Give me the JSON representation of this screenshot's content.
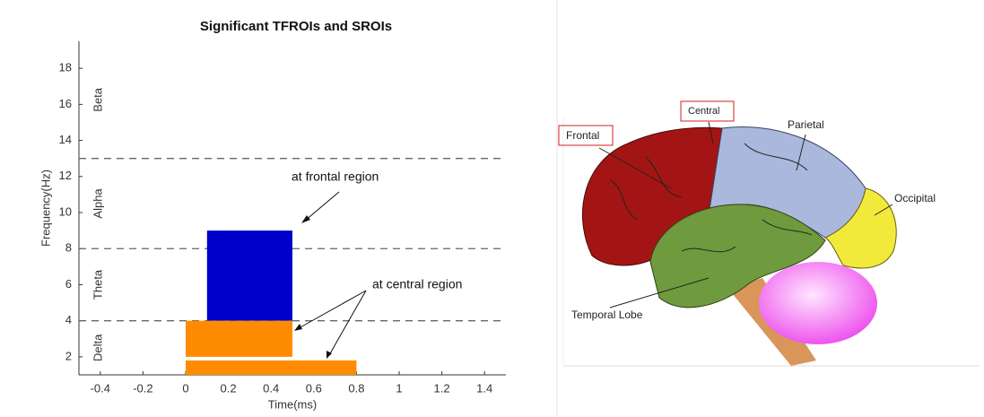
{
  "chart_data": {
    "type": "rectangle",
    "title": "Significant TFROIs and SROIs",
    "xlabel": "Time(ms)",
    "ylabel": "Frequency(Hz)",
    "xlim": [
      -0.5,
      1.5
    ],
    "xticks": [
      -0.4,
      -0.2,
      0,
      0.2,
      0.4,
      0.6,
      0.8,
      1,
      1.2,
      1.4
    ],
    "ylim": [
      1,
      19.5
    ],
    "yticks": [
      2,
      4,
      6,
      8,
      10,
      12,
      14,
      16,
      18
    ],
    "band_lines": [
      4,
      8,
      13
    ],
    "band_labels": [
      "Delta",
      "Theta",
      "Alpha",
      "Beta"
    ],
    "regions": [
      {
        "color": "#0000cc",
        "x": [
          0.1,
          0.5
        ],
        "y": [
          4,
          9
        ]
      },
      {
        "color": "#ff8c00",
        "x": [
          0,
          0.5
        ],
        "y": [
          2,
          4
        ]
      },
      {
        "color": "#ff8c00",
        "x": [
          0,
          0.8
        ],
        "y": [
          1,
          1.8
        ]
      }
    ],
    "annotations": [
      "at frontal region",
      "at central region"
    ]
  },
  "diagram": {
    "labels": [
      "Frontal",
      "Central",
      "Parietal",
      "Occipital",
      "Temporal Lobe"
    ]
  }
}
